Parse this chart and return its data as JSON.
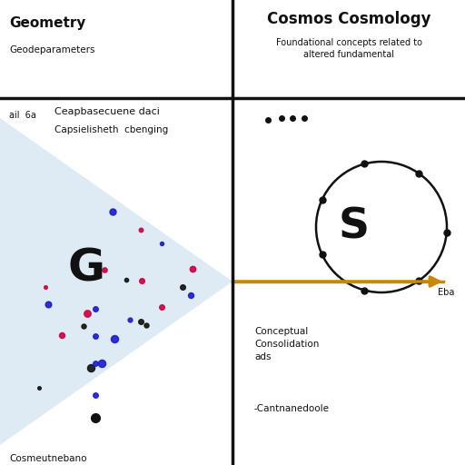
{
  "background_color": "#ffffff",
  "divider_color": "#111111",
  "text_color": "#111111",
  "cone_color": "#b8d4e8",
  "arrow_color": "#c8860a",
  "scatter_color_blue": "#1a1acd",
  "scatter_color_red": "#cc0044",
  "scatter_color_black": "#111111",
  "orbit_color": "#111111",
  "tl_title": "Geometry",
  "tl_title2": "Geodeparameters",
  "tr_title1": "Cosmos Cosmology",
  "tr_subtitle": "Foundational concepts related to\naltered fundamental",
  "mid_text1": "Ceapbasecuene daci",
  "mid_text2": "Capsielisheth  cbenging",
  "mid_text_prefix": "ail  6a",
  "bl_G": "G",
  "bl_bottom": "Cosmeutnebano",
  "br_S": "S",
  "br_orbit_label": "Eba",
  "br_desc1": "Conceptual\nConsolidation\nads",
  "br_desc2": "-Cantnanedoole",
  "figsize": [
    5.12,
    5.12
  ],
  "dpi": 100
}
